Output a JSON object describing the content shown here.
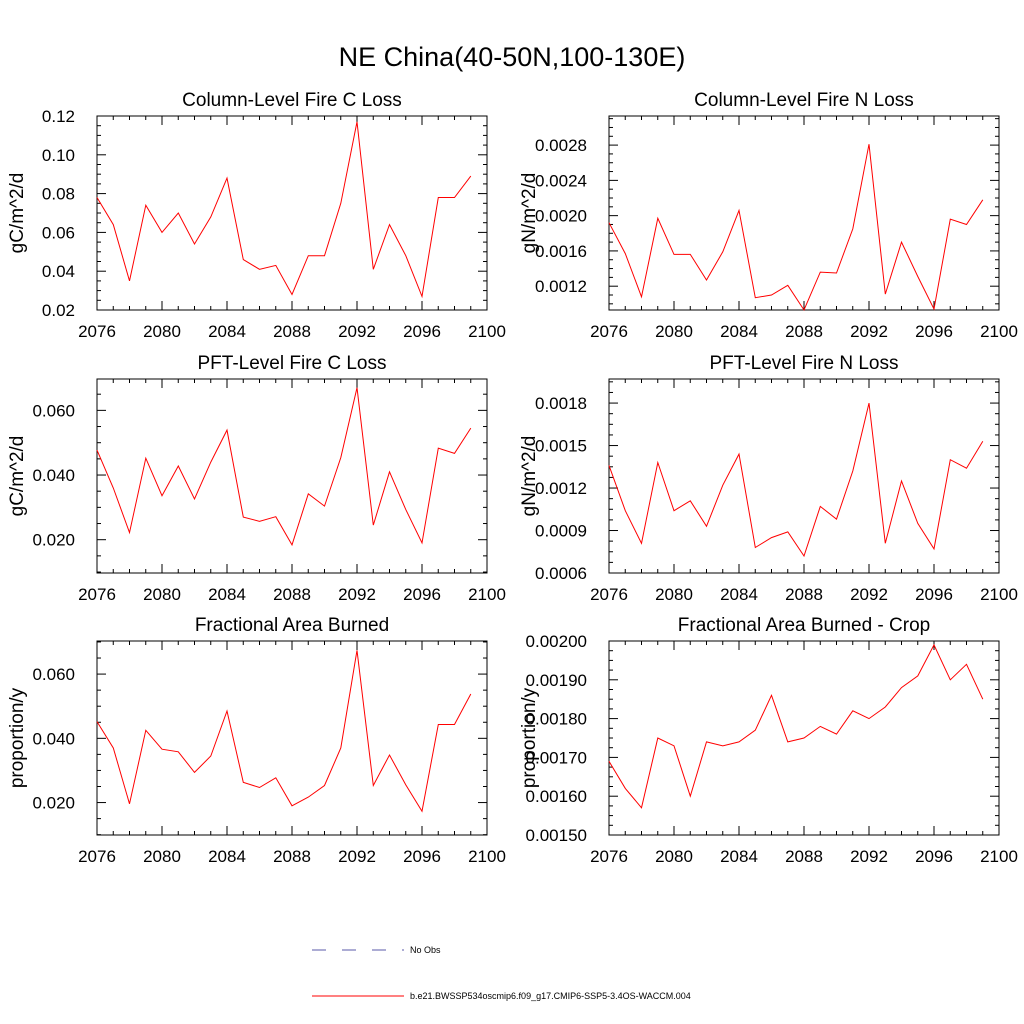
{
  "page_title": "NE China(40-50N,100-130E)",
  "colors": {
    "series": "#ff0000",
    "obs": "#5a5aa8",
    "axis": "#000000"
  },
  "legend": {
    "obs_label": "No Obs",
    "model_label": "b.e21.BWSSP534oscmip6.f09_g17.CMIP6-SSP5-3.4OS-WACCM.004"
  },
  "chart_data": [
    {
      "type": "line",
      "title": "Column-Level Fire C Loss",
      "xlabel": "",
      "ylabel": "gC/m^2/d",
      "xlim": [
        2076,
        2100
      ],
      "ylim": [
        0.02,
        0.12
      ],
      "xticks": [
        2076,
        2080,
        2084,
        2088,
        2092,
        2096,
        2100
      ],
      "xtick_labels": [
        "2076",
        "2080",
        "2084",
        "2088",
        "2092",
        "2096",
        "2100"
      ],
      "yticks": [
        0.02,
        0.04,
        0.06,
        0.08,
        0.1,
        0.12
      ],
      "ytick_labels": [
        "0.02",
        "0.04",
        "0.06",
        "0.08",
        "0.10",
        "0.12"
      ],
      "x": [
        2076,
        2077,
        2078,
        2079,
        2080,
        2081,
        2082,
        2083,
        2084,
        2085,
        2086,
        2087,
        2088,
        2089,
        2090,
        2091,
        2092,
        2093,
        2094,
        2095,
        2096,
        2097,
        2098,
        2099
      ],
      "series": [
        {
          "name": "b.e21.BWSSP534oscmip6.f09_g17.CMIP6-SSP5-3.4OS-WACCM.004",
          "values": [
            0.078,
            0.064,
            0.035,
            0.074,
            0.06,
            0.07,
            0.054,
            0.068,
            0.088,
            0.046,
            0.041,
            0.043,
            0.028,
            0.048,
            0.048,
            0.075,
            0.117,
            0.041,
            0.064,
            0.048,
            0.027,
            0.078,
            0.078,
            0.089
          ]
        }
      ]
    },
    {
      "type": "line",
      "title": "Column-Level Fire N Loss",
      "xlabel": "",
      "ylabel": "gN/m^2/d",
      "xlim": [
        2076,
        2100
      ],
      "ylim": [
        0.00093,
        0.00313
      ],
      "xticks": [
        2076,
        2080,
        2084,
        2088,
        2092,
        2096,
        2100
      ],
      "xtick_labels": [
        "2076",
        "2080",
        "2084",
        "2088",
        "2092",
        "2096",
        "2100"
      ],
      "yticks": [
        0.0012,
        0.0016,
        0.002,
        0.0024,
        0.0028
      ],
      "ytick_labels": [
        "0.0012",
        "0.0016",
        "0.0020",
        "0.0024",
        "0.0028"
      ],
      "x": [
        2076,
        2077,
        2078,
        2079,
        2080,
        2081,
        2082,
        2083,
        2084,
        2085,
        2086,
        2087,
        2088,
        2089,
        2090,
        2091,
        2092,
        2093,
        2094,
        2095,
        2096,
        2097,
        2098,
        2099
      ],
      "series": [
        {
          "name": "b.e21.BWSSP534oscmip6.f09_g17.CMIP6-SSP5-3.4OS-WACCM.004",
          "values": [
            0.00192,
            0.00157,
            0.00108,
            0.00197,
            0.00156,
            0.00156,
            0.00127,
            0.00159,
            0.00206,
            0.00107,
            0.0011,
            0.00121,
            0.00093,
            0.00136,
            0.00135,
            0.00185,
            0.00281,
            0.00111,
            0.0017,
            0.00131,
            0.00094,
            0.00196,
            0.0019,
            0.00218
          ]
        }
      ]
    },
    {
      "type": "line",
      "title": "PFT-Level Fire C Loss",
      "xlabel": "",
      "ylabel": "gC/m^2/d",
      "xlim": [
        2076,
        2100
      ],
      "ylim": [
        0.0097,
        0.0697
      ],
      "xticks": [
        2076,
        2080,
        2084,
        2088,
        2092,
        2096,
        2100
      ],
      "xtick_labels": [
        "2076",
        "2080",
        "2084",
        "2088",
        "2092",
        "2096",
        "2100"
      ],
      "yticks": [
        0.02,
        0.04,
        0.06
      ],
      "ytick_labels": [
        "0.020",
        "0.040",
        "0.060"
      ],
      "x": [
        2076,
        2077,
        2078,
        2079,
        2080,
        2081,
        2082,
        2083,
        2084,
        2085,
        2086,
        2087,
        2088,
        2089,
        2090,
        2091,
        2092,
        2093,
        2094,
        2095,
        2096,
        2097,
        2098,
        2099
      ],
      "series": [
        {
          "name": "b.e21.BWSSP534oscmip6.f09_g17.CMIP6-SSP5-3.4OS-WACCM.004",
          "values": [
            0.0477,
            0.036,
            0.0222,
            0.0452,
            0.0336,
            0.0428,
            0.0326,
            0.044,
            0.0539,
            0.027,
            0.0257,
            0.0271,
            0.0184,
            0.0342,
            0.0304,
            0.0454,
            0.067,
            0.0245,
            0.041,
            0.0293,
            0.019,
            0.0483,
            0.0467,
            0.0545
          ]
        }
      ]
    },
    {
      "type": "line",
      "title": "PFT-Level Fire N Loss",
      "xlabel": "",
      "ylabel": "gN/m^2/d",
      "xlim": [
        2076,
        2100
      ],
      "ylim": [
        0.0006,
        0.00197
      ],
      "xticks": [
        2076,
        2080,
        2084,
        2088,
        2092,
        2096,
        2100
      ],
      "xtick_labels": [
        "2076",
        "2080",
        "2084",
        "2088",
        "2092",
        "2096",
        "2100"
      ],
      "yticks": [
        0.0006,
        0.0009,
        0.0012,
        0.0015,
        0.0018
      ],
      "ytick_labels": [
        "0.0006",
        "0.0009",
        "0.0012",
        "0.0015",
        "0.0018"
      ],
      "x": [
        2076,
        2077,
        2078,
        2079,
        2080,
        2081,
        2082,
        2083,
        2084,
        2085,
        2086,
        2087,
        2088,
        2089,
        2090,
        2091,
        2092,
        2093,
        2094,
        2095,
        2096,
        2097,
        2098,
        2099
      ],
      "series": [
        {
          "name": "b.e21.BWSSP534oscmip6.f09_g17.CMIP6-SSP5-3.4OS-WACCM.004",
          "values": [
            0.00136,
            0.00104,
            0.00081,
            0.00138,
            0.00104,
            0.00111,
            0.00093,
            0.00122,
            0.00144,
            0.00078,
            0.00085,
            0.00089,
            0.00072,
            0.00107,
            0.00098,
            0.00132,
            0.0018,
            0.00081,
            0.00125,
            0.00095,
            0.00077,
            0.0014,
            0.00134,
            0.00153
          ]
        }
      ]
    },
    {
      "type": "line",
      "title": "Fractional Area Burned",
      "xlabel": "",
      "ylabel": "proportion/y",
      "xlim": [
        2076,
        2100
      ],
      "ylim": [
        0.0099,
        0.0703
      ],
      "xticks": [
        2076,
        2080,
        2084,
        2088,
        2092,
        2096,
        2100
      ],
      "xtick_labels": [
        "2076",
        "2080",
        "2084",
        "2088",
        "2092",
        "2096",
        "2100"
      ],
      "yticks": [
        0.02,
        0.04,
        0.06
      ],
      "ytick_labels": [
        "0.020",
        "0.040",
        "0.060"
      ],
      "x": [
        2076,
        2077,
        2078,
        2079,
        2080,
        2081,
        2082,
        2083,
        2084,
        2085,
        2086,
        2087,
        2088,
        2089,
        2090,
        2091,
        2092,
        2093,
        2094,
        2095,
        2096,
        2097,
        2098,
        2099
      ],
      "series": [
        {
          "name": "b.e21.BWSSP534oscmip6.f09_g17.CMIP6-SSP5-3.4OS-WACCM.004",
          "values": [
            0.0452,
            0.037,
            0.0196,
            0.0425,
            0.0366,
            0.0358,
            0.0294,
            0.0345,
            0.0485,
            0.0263,
            0.0247,
            0.0277,
            0.019,
            0.0217,
            0.0253,
            0.037,
            0.0674,
            0.0253,
            0.0348,
            0.0255,
            0.0173,
            0.0443,
            0.0443,
            0.0538
          ]
        }
      ]
    },
    {
      "type": "line",
      "title": "Fractional Area Burned - Crop",
      "xlabel": "",
      "ylabel": "proportion/y",
      "xlim": [
        2076,
        2100
      ],
      "ylim": [
        0.0015,
        0.002
      ],
      "xticks": [
        2076,
        2080,
        2084,
        2088,
        2092,
        2096,
        2100
      ],
      "xtick_labels": [
        "2076",
        "2080",
        "2084",
        "2088",
        "2092",
        "2096",
        "2100"
      ],
      "yticks": [
        0.0015,
        0.0016,
        0.0017,
        0.0018,
        0.0019,
        0.002
      ],
      "ytick_labels": [
        "0.00150",
        "0.00160",
        "0.00170",
        "0.00180",
        "0.00190",
        "0.00200"
      ],
      "x": [
        2076,
        2077,
        2078,
        2079,
        2080,
        2081,
        2082,
        2083,
        2084,
        2085,
        2086,
        2087,
        2088,
        2089,
        2090,
        2091,
        2092,
        2093,
        2094,
        2095,
        2096,
        2097,
        2098,
        2099
      ],
      "series": [
        {
          "name": "b.e21.BWSSP534oscmip6.f09_g17.CMIP6-SSP5-3.4OS-WACCM.004",
          "values": [
            0.00169,
            0.00162,
            0.00157,
            0.00175,
            0.00173,
            0.0016,
            0.00174,
            0.00173,
            0.00174,
            0.00177,
            0.00186,
            0.00174,
            0.00175,
            0.00178,
            0.00176,
            0.00182,
            0.0018,
            0.00183,
            0.00188,
            0.00191,
            0.00199,
            0.0019,
            0.00194,
            0.00185
          ]
        }
      ]
    }
  ]
}
